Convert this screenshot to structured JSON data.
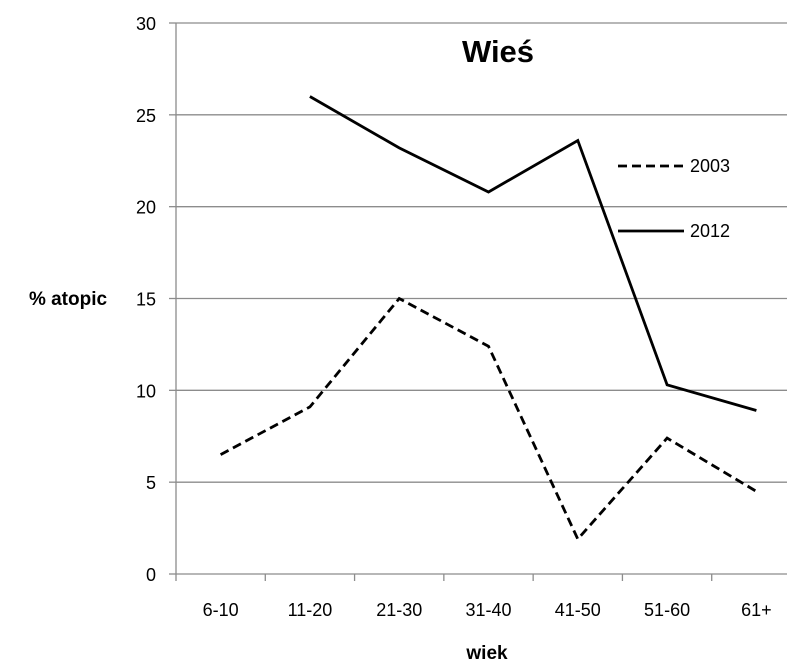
{
  "chart_data": {
    "type": "line",
    "title": "Wieś",
    "xlabel": "wiek",
    "ylabel": "% atopic",
    "categories": [
      "6-10",
      "11-20",
      "21-30",
      "31-40",
      "41-50",
      "51-60",
      "61+"
    ],
    "ylim": [
      0,
      30
    ],
    "yticks": [
      0,
      5,
      10,
      15,
      20,
      25,
      30
    ],
    "grid": "horizontal",
    "legend_position": "right",
    "series": [
      {
        "name": "2003",
        "style": "dashed",
        "color": "#000000",
        "values": [
          6.5,
          9.1,
          15.0,
          12.4,
          1.9,
          7.4,
          4.5
        ]
      },
      {
        "name": "2012",
        "style": "solid",
        "color": "#000000",
        "values": [
          null,
          26.0,
          23.2,
          20.8,
          23.6,
          10.3,
          8.9
        ]
      }
    ]
  }
}
